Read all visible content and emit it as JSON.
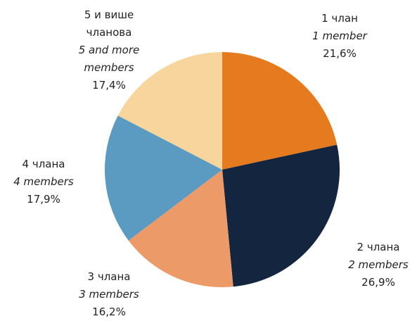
{
  "chart_data": {
    "type": "pie",
    "categories": [
      "1 члан",
      "2 члана",
      "3 члана",
      "4 члана",
      "5 и више чланова"
    ],
    "categories_en": [
      "1 member",
      "2 members",
      "3 members",
      "4 members",
      "5 and more members"
    ],
    "values": [
      21.6,
      26.9,
      16.2,
      17.9,
      17.4
    ],
    "value_labels": [
      "21,6%",
      "26,9%",
      "16,2%",
      "17,9%",
      "17,4%"
    ],
    "colors": [
      "#e67a1e",
      "#13253f",
      "#ec9a68",
      "#5b9bc2",
      "#f7d59c"
    ]
  }
}
